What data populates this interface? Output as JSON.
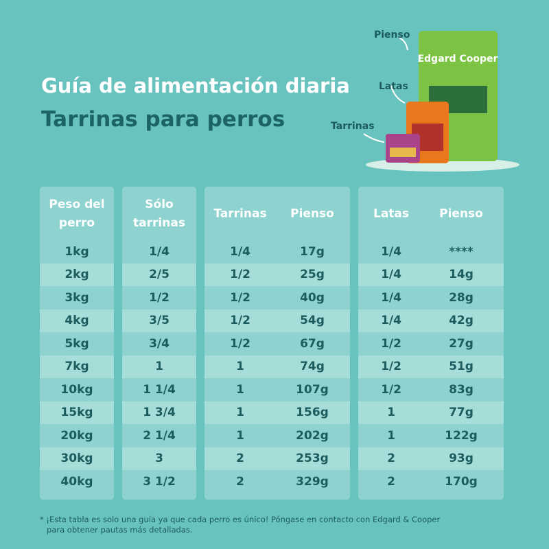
{
  "header": {
    "title": "Guía de alimentación diaria",
    "subtitle": "Tarrinas para perros"
  },
  "product": {
    "brand": "Edgard Cooper",
    "labels": [
      "Pienso",
      "Latas",
      "Tarrinas"
    ]
  },
  "table": {
    "headers": [
      "Peso del perro",
      "Sólo tarrinas",
      "Tarrinas",
      "Pienso",
      "Latas",
      "Pienso"
    ],
    "rows": [
      [
        "1kg",
        "1/4",
        "1/4",
        "17g",
        "1/4",
        "****"
      ],
      [
        "2kg",
        "2/5",
        "1/2",
        "25g",
        "1/4",
        "14g"
      ],
      [
        "3kg",
        "1/2",
        "1/2",
        "40g",
        "1/4",
        "28g"
      ],
      [
        "4kg",
        "3/5",
        "1/2",
        "54g",
        "1/4",
        "42g"
      ],
      [
        "5kg",
        "3/4",
        "1/2",
        "67g",
        "1/2",
        "27g"
      ],
      [
        "7kg",
        "1",
        "1",
        "74g",
        "1/2",
        "51g"
      ],
      [
        "10kg",
        "1 1/4",
        "1",
        "107g",
        "1/2",
        "83g"
      ],
      [
        "15kg",
        "1 3/4",
        "1",
        "156g",
        "1",
        "77g"
      ],
      [
        "20kg",
        "2 1/4",
        "1",
        "202g",
        "1",
        "122g"
      ],
      [
        "30kg",
        "3",
        "2",
        "253g",
        "2",
        "93g"
      ],
      [
        "40kg",
        "3 1/2",
        "2",
        "329g",
        "2",
        "170g"
      ]
    ]
  },
  "footnote": [
    "* ¡Esta tabla es solo una guía ya que cada perro es único! Póngase en contacto con Edgard & Cooper",
    "para obtener pautas más detalladas."
  ]
}
